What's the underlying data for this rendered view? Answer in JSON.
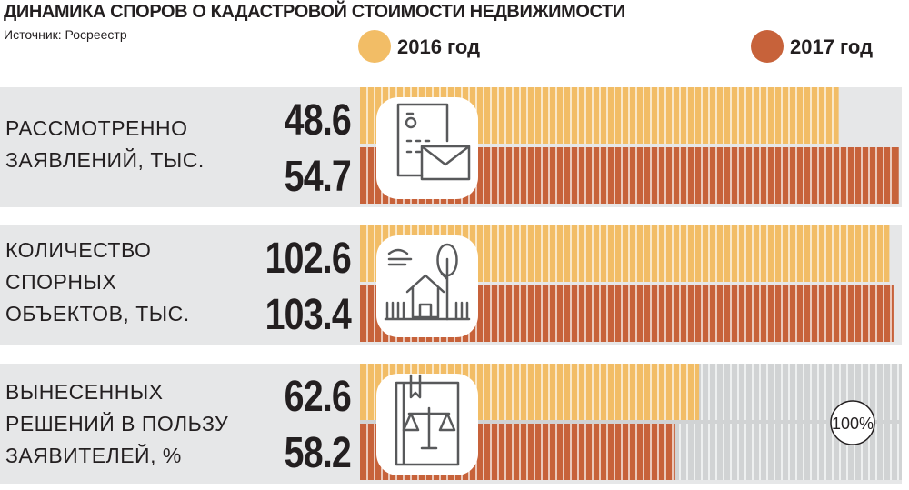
{
  "header": {
    "title": "ДИНАМИКА СПОРОВ О КАДАСТРОВОЙ СТОИМОСТИ НЕДВИЖИМОСТИ",
    "source": "Источник: Росреестр"
  },
  "colors": {
    "series_2016": "#f2bd66",
    "series_2017": "#c7623a",
    "remainder": "#d1d3d4",
    "panel": "#e6e7e8",
    "text": "#231f20"
  },
  "icons": [
    "document-envelope-icon",
    "house-tree-icon",
    "law-scales-icon"
  ],
  "chart_data": {
    "type": "bar",
    "orientation": "horizontal",
    "title": "ДИНАМИКА СПОРОВ О КАДАСТРОВОЙ СТОИМОСТИ НЕДВИЖИМОСТИ",
    "legend_position": "top-right",
    "series": [
      {
        "name": "2016 год",
        "values": [
          48.6,
          102.6,
          62.6
        ]
      },
      {
        "name": "2017 год",
        "values": [
          54.7,
          103.4,
          58.2
        ]
      }
    ],
    "categories": [
      {
        "lines": [
          "РАССМОТРЕННО",
          "ЗАЯВЛЕНИЙ, ТЫС."
        ],
        "values_text": [
          "48.6",
          "54.7"
        ],
        "max": 55
      },
      {
        "lines": [
          "КОЛИЧЕСТВО",
          "СПОРНЫХ",
          "ОБЪЕКТОВ, ТЫС."
        ],
        "values_text": [
          "102.6",
          "103.4"
        ],
        "max": 105
      },
      {
        "lines": [
          "ВЫНЕСЕННЫХ",
          "РЕШЕНИЙ В ПОЛЬЗУ",
          "ЗАЯВИТЕЛЕЙ, %"
        ],
        "values_text": [
          "62.6",
          "58.2"
        ],
        "max": 100
      }
    ],
    "full_scale_label": "100%"
  }
}
